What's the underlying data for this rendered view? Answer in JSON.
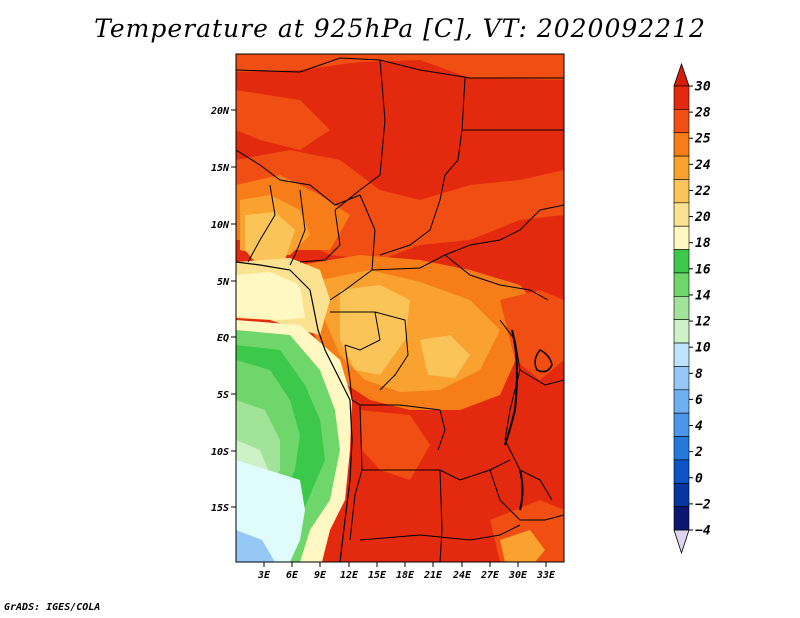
{
  "title": "Temperature at 925hPa [C], VT: 2020092212",
  "footer": "GrADS: IGES/COLA",
  "lat_labels": [
    "20N",
    "15N",
    "10N",
    "5N",
    "EQ",
    "5S",
    "10S",
    "15S"
  ],
  "lon_labels": [
    "3E",
    "6E",
    "9E",
    "12E",
    "15E",
    "18E",
    "21E",
    "24E",
    "27E",
    "30E",
    "33E"
  ],
  "colorbar": {
    "labels": [
      "30",
      "28",
      "25",
      "24",
      "22",
      "20",
      "18",
      "16",
      "14",
      "12",
      "10",
      "8",
      "6",
      "4",
      "2",
      "0",
      "−2",
      "−4"
    ],
    "colors": [
      "#e32a0e",
      "#f04e12",
      "#f77d18",
      "#f9a230",
      "#fac459",
      "#fbe291",
      "#fff8c2",
      "#3cc84a",
      "#6ed66a",
      "#a1e499",
      "#cdf2c7",
      "#bfe3fa",
      "#96c8f6",
      "#6fb0f1",
      "#4b96ea",
      "#2479d9",
      "#0c54c4",
      "#06369e",
      "#0a1670"
    ],
    "arrow_colors": {
      "top": "#d61e0a",
      "bottom": "#dcd5ee"
    }
  },
  "legend_colors": {
    "t30plus": "#e0260b",
    "t28": "#f04e12",
    "t25": "#f77d18",
    "t24": "#f9a230",
    "t22": "#fac459",
    "t20": "#fbe291",
    "t18": "#fff8c2",
    "t16": "#3cc84a",
    "t14": "#6ed66a",
    "t12": "#a1e499",
    "t10": "#cdf2c7",
    "t8": "#e0fbfb",
    "t6": "#bfe3fa",
    "t4": "#96c8f6"
  }
}
